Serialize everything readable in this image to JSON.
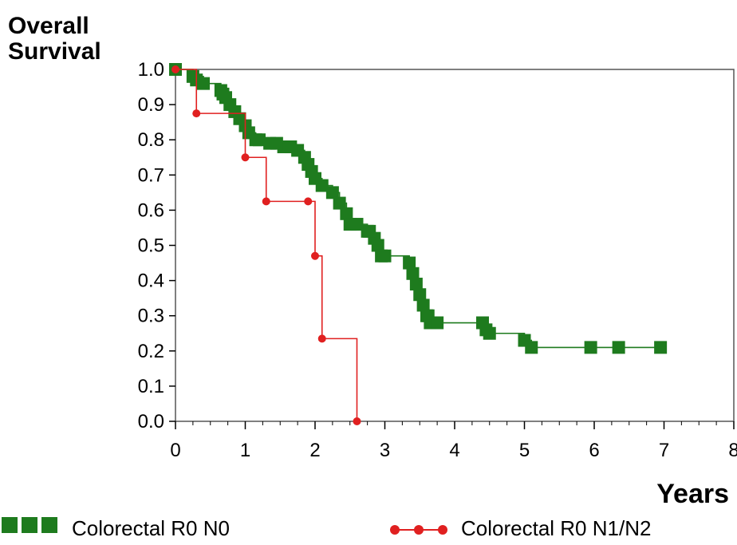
{
  "chart_data": {
    "type": "line",
    "title": "",
    "ylabel_lines": [
      "Overall",
      "Survival"
    ],
    "xlabel": "Years",
    "xlim": [
      0,
      8
    ],
    "ylim": [
      0,
      1
    ],
    "xticks": [
      "0",
      "1",
      "2",
      "3",
      "4",
      "5",
      "6",
      "7",
      "8"
    ],
    "yticks": [
      "0.0",
      "0.1",
      "0.2",
      "0.3",
      "0.4",
      "0.5",
      "0.6",
      "0.7",
      "0.8",
      "0.9",
      "1.0"
    ],
    "grid": false,
    "legend_position": "bottom",
    "series": [
      {
        "name": "Colorectal R0 N0",
        "color": "#1e7b1e",
        "marker": "square",
        "steps": [
          [
            0,
            1.0
          ],
          [
            0.25,
            0.98
          ],
          [
            0.4,
            0.96
          ],
          [
            0.65,
            0.94
          ],
          [
            0.72,
            0.92
          ],
          [
            0.78,
            0.9
          ],
          [
            0.85,
            0.88
          ],
          [
            0.92,
            0.86
          ],
          [
            1.0,
            0.84
          ],
          [
            1.05,
            0.82
          ],
          [
            1.15,
            0.8
          ],
          [
            1.35,
            0.79
          ],
          [
            1.55,
            0.78
          ],
          [
            1.75,
            0.77
          ],
          [
            1.85,
            0.75
          ],
          [
            1.9,
            0.73
          ],
          [
            1.95,
            0.71
          ],
          [
            2.0,
            0.69
          ],
          [
            2.1,
            0.67
          ],
          [
            2.25,
            0.65
          ],
          [
            2.35,
            0.62
          ],
          [
            2.45,
            0.59
          ],
          [
            2.5,
            0.56
          ],
          [
            2.75,
            0.54
          ],
          [
            2.85,
            0.52
          ],
          [
            2.9,
            0.5
          ],
          [
            2.95,
            0.47
          ],
          [
            3.35,
            0.45
          ],
          [
            3.4,
            0.42
          ],
          [
            3.45,
            0.39
          ],
          [
            3.5,
            0.36
          ],
          [
            3.55,
            0.33
          ],
          [
            3.6,
            0.3
          ],
          [
            3.65,
            0.28
          ],
          [
            4.45,
            0.26
          ],
          [
            4.5,
            0.25
          ],
          [
            5.0,
            0.23
          ],
          [
            5.1,
            0.21
          ]
        ],
        "end_x": 6.95,
        "censored": [
          [
            0.3,
            0.97
          ],
          [
            0.68,
            0.93
          ],
          [
            1.2,
            0.8
          ],
          [
            1.45,
            0.79
          ],
          [
            1.65,
            0.78
          ],
          [
            2.6,
            0.56
          ],
          [
            2.78,
            0.54
          ],
          [
            3.0,
            0.47
          ],
          [
            3.62,
            0.3
          ],
          [
            3.75,
            0.28
          ],
          [
            4.4,
            0.28
          ],
          [
            5.95,
            0.21
          ],
          [
            6.35,
            0.21
          ],
          [
            6.95,
            0.21
          ]
        ]
      },
      {
        "name": "Colorectal R0 N1/N2",
        "color": "#e02020",
        "marker": "circle",
        "steps": [
          [
            0,
            1.0
          ],
          [
            0.3,
            0.875
          ],
          [
            1.0,
            0.75
          ],
          [
            1.3,
            0.625
          ],
          [
            2.0,
            0.47
          ],
          [
            2.1,
            0.235
          ],
          [
            2.6,
            0.0
          ]
        ],
        "end_x": 2.6,
        "censored": [
          [
            1.9,
            0.625
          ]
        ]
      }
    ]
  }
}
